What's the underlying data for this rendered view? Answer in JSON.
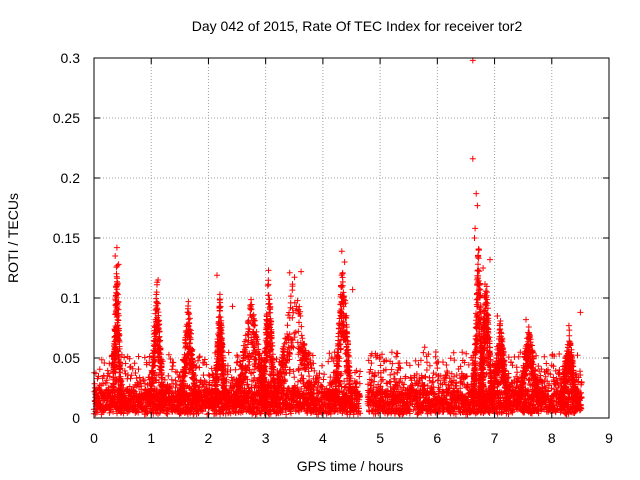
{
  "chart_data": {
    "type": "scatter",
    "title": "Day 042 of 2015, Rate Of TEC Index for receiver tor2",
    "xlabel": "GPS time / hours",
    "ylabel": "ROTI / TECUs",
    "xlim": [
      0,
      9
    ],
    "ylim": [
      0,
      0.3
    ],
    "x_ticks": [
      0,
      1,
      2,
      3,
      4,
      5,
      6,
      7,
      8,
      9
    ],
    "y_ticks": [
      0,
      0.05,
      0.1,
      0.15,
      0.2,
      0.25,
      0.3
    ],
    "x_tick_labels": [
      "0",
      "1",
      "2",
      "3",
      "4",
      "5",
      "6",
      "7",
      "8",
      "9"
    ],
    "y_tick_labels": [
      "0",
      "0.05",
      "0.1",
      "0.15",
      "0.2",
      "0.25",
      "0.3"
    ],
    "grid": true,
    "marker": "+",
    "color": "#ff0000",
    "series": [
      {
        "name": "ROTI",
        "notable_points": [
          {
            "x": 0.4,
            "y": 0.142
          },
          {
            "x": 0.37,
            "y": 0.135
          },
          {
            "x": 0.43,
            "y": 0.128
          },
          {
            "x": 1.12,
            "y": 0.115
          },
          {
            "x": 1.65,
            "y": 0.097
          },
          {
            "x": 2.15,
            "y": 0.119
          },
          {
            "x": 2.2,
            "y": 0.103
          },
          {
            "x": 2.42,
            "y": 0.093
          },
          {
            "x": 3.05,
            "y": 0.123
          },
          {
            "x": 3.42,
            "y": 0.121
          },
          {
            "x": 3.62,
            "y": 0.122
          },
          {
            "x": 4.33,
            "y": 0.139
          },
          {
            "x": 4.38,
            "y": 0.13
          },
          {
            "x": 4.52,
            "y": 0.107
          },
          {
            "x": 4.8,
            "y": 0.048
          },
          {
            "x": 5.78,
            "y": 0.059
          },
          {
            "x": 6.62,
            "y": 0.298
          },
          {
            "x": 6.62,
            "y": 0.216
          },
          {
            "x": 6.68,
            "y": 0.187
          },
          {
            "x": 6.7,
            "y": 0.177
          },
          {
            "x": 6.66,
            "y": 0.158
          },
          {
            "x": 6.65,
            "y": 0.15
          },
          {
            "x": 6.72,
            "y": 0.14
          },
          {
            "x": 6.8,
            "y": 0.125
          },
          {
            "x": 6.92,
            "y": 0.132
          },
          {
            "x": 7.05,
            "y": 0.085
          },
          {
            "x": 7.55,
            "y": 0.082
          },
          {
            "x": 8.3,
            "y": 0.077
          },
          {
            "x": 8.5,
            "y": 0.088
          }
        ],
        "bursts": [
          {
            "center": 0.4,
            "width": 0.08,
            "peak": 0.14
          },
          {
            "center": 1.1,
            "width": 0.12,
            "peak": 0.115
          },
          {
            "center": 1.65,
            "width": 0.15,
            "peak": 0.098
          },
          {
            "center": 2.2,
            "width": 0.1,
            "peak": 0.105
          },
          {
            "center": 2.75,
            "width": 0.3,
            "peak": 0.1
          },
          {
            "center": 3.05,
            "width": 0.12,
            "peak": 0.123
          },
          {
            "center": 3.5,
            "width": 0.35,
            "peak": 0.122
          },
          {
            "center": 4.35,
            "width": 0.15,
            "peak": 0.139
          },
          {
            "center": 6.72,
            "width": 0.1,
            "peak": 0.15
          },
          {
            "center": 6.85,
            "width": 0.12,
            "peak": 0.13
          },
          {
            "center": 7.1,
            "width": 0.15,
            "peak": 0.085
          },
          {
            "center": 7.6,
            "width": 0.2,
            "peak": 0.08
          },
          {
            "center": 8.3,
            "width": 0.15,
            "peak": 0.077
          }
        ],
        "coverage": [
          [
            0.0,
            4.65
          ],
          [
            4.78,
            8.52
          ]
        ],
        "baseline_range": [
          0.005,
          0.03
        ]
      }
    ]
  }
}
